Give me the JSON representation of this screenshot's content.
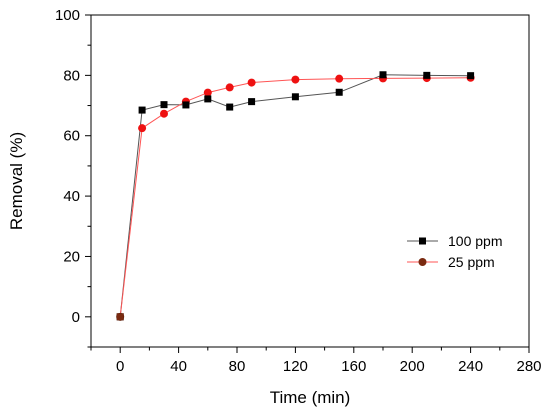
{
  "chart_data": {
    "type": "line",
    "title": "",
    "xlabel": "Time (min)",
    "ylabel": "Removal (%)",
    "xlim": [
      -20,
      280
    ],
    "ylim": [
      -10,
      100
    ],
    "xticks": [
      0,
      40,
      80,
      120,
      160,
      200,
      240,
      280
    ],
    "yticks": [
      0,
      20,
      40,
      60,
      80,
      100
    ],
    "grid": false,
    "legend": "center-right",
    "series": [
      {
        "name": "100 ppm",
        "marker": "square",
        "line_color": "#555555",
        "marker_color": "#000000",
        "x": [
          0,
          15,
          30,
          45,
          60,
          75,
          90,
          120,
          150,
          180,
          210,
          240
        ],
        "y": [
          0,
          68.5,
          70.3,
          70.2,
          72.2,
          69.5,
          71.3,
          72.9,
          74.4,
          80.2,
          80.0,
          79.9
        ]
      },
      {
        "name": "25 ppm",
        "marker": "circle",
        "line_color": "#ff5555",
        "marker_color": "#ee1111",
        "first_marker_color": "#7a2a10",
        "x": [
          0,
          15,
          30,
          45,
          60,
          75,
          90,
          120,
          150,
          180,
          210,
          240
        ],
        "y": [
          0,
          62.5,
          67.3,
          71.3,
          74.3,
          76.0,
          77.6,
          78.6,
          78.9,
          79.0,
          79.1,
          79.2
        ]
      }
    ]
  }
}
